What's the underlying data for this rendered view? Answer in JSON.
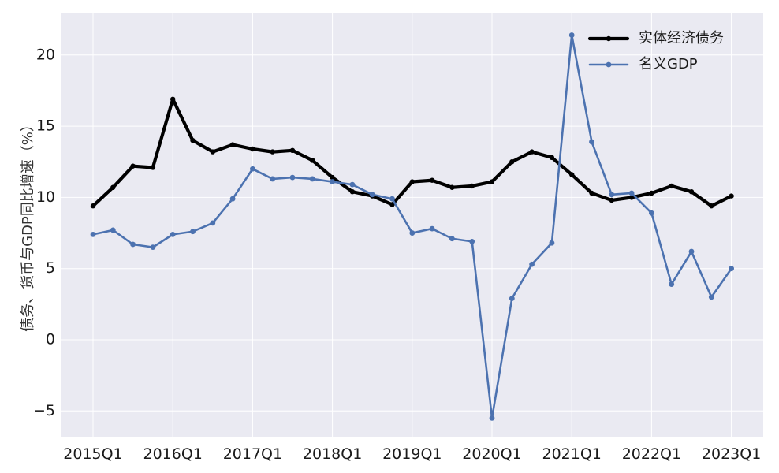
{
  "chart_data": {
    "type": "line",
    "ylabel": "债务、货币与GDP同比增速（%）",
    "xlabel": "",
    "ylim": [
      -6.8,
      22.8
    ],
    "yticks": [
      -5,
      0,
      5,
      10,
      15,
      20
    ],
    "x_tick_labels": [
      "2015Q1",
      "2016Q1",
      "2017Q1",
      "2018Q1",
      "2019Q1",
      "2020Q1",
      "2021Q1",
      "2022Q1",
      "2023Q1"
    ],
    "categories": [
      "2015Q1",
      "2015Q2",
      "2015Q3",
      "2015Q4",
      "2016Q1",
      "2016Q2",
      "2016Q3",
      "2016Q4",
      "2017Q1",
      "2017Q2",
      "2017Q3",
      "2017Q4",
      "2018Q1",
      "2018Q2",
      "2018Q3",
      "2018Q4",
      "2019Q1",
      "2019Q2",
      "2019Q3",
      "2019Q4",
      "2020Q1",
      "2020Q2",
      "2020Q3",
      "2020Q4",
      "2021Q1",
      "2021Q2",
      "2021Q3",
      "2021Q4",
      "2022Q1",
      "2022Q2",
      "2022Q3",
      "2022Q4",
      "2023Q1"
    ],
    "grid": true,
    "legend_position": "top-right",
    "series": [
      {
        "name": "实体经济债务",
        "color": "#000000",
        "values": [
          9.4,
          10.7,
          12.2,
          12.1,
          16.9,
          14.0,
          13.2,
          13.7,
          13.4,
          13.2,
          13.3,
          12.6,
          11.4,
          10.4,
          10.1,
          9.5,
          11.1,
          11.2,
          10.7,
          10.8,
          11.1,
          12.5,
          13.2,
          12.8,
          11.6,
          10.3,
          9.8,
          10.0,
          10.3,
          10.8,
          10.4,
          9.4,
          10.1
        ]
      },
      {
        "name": "名义GDP",
        "color": "#4c72b0",
        "values": [
          7.4,
          7.7,
          6.7,
          6.5,
          7.4,
          7.6,
          8.2,
          9.9,
          12.0,
          11.3,
          11.4,
          11.3,
          11.1,
          10.9,
          10.2,
          9.9,
          7.5,
          7.8,
          7.1,
          6.9,
          -5.5,
          2.9,
          5.3,
          6.8,
          21.4,
          13.9,
          10.2,
          10.3,
          8.9,
          3.9,
          6.2,
          3.0,
          5.0
        ]
      }
    ]
  }
}
